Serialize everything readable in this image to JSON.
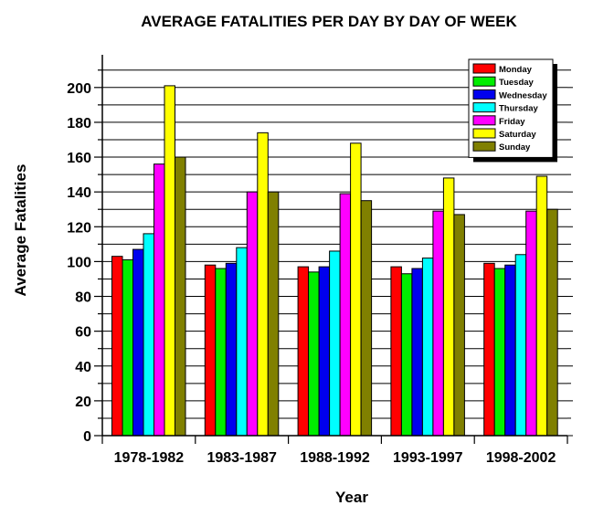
{
  "chart_data": {
    "type": "bar",
    "title": "AVERAGE FATALITIES PER DAY BY DAY OF WEEK",
    "xlabel": "Year",
    "ylabel": "Average Fatalities",
    "ylim": [
      0,
      210
    ],
    "yticks": [
      0,
      20,
      40,
      60,
      80,
      100,
      120,
      140,
      160,
      180,
      200
    ],
    "grid": true,
    "legend_position": "top-right",
    "categories": [
      "1978-1982",
      "1983-1987",
      "1988-1992",
      "1993-1997",
      "1998-2002"
    ],
    "series": [
      {
        "name": "Monday",
        "color": "#ff0000",
        "values": [
          103,
          98,
          97,
          97,
          99
        ]
      },
      {
        "name": "Tuesday",
        "color": "#00ee00",
        "values": [
          101,
          96,
          94,
          93,
          96
        ]
      },
      {
        "name": "Wednesday",
        "color": "#0000ee",
        "values": [
          107,
          99,
          97,
          96,
          98
        ]
      },
      {
        "name": "Thursday",
        "color": "#00ffff",
        "values": [
          116,
          108,
          106,
          102,
          104
        ]
      },
      {
        "name": "Friday",
        "color": "#ff00ff",
        "values": [
          156,
          140,
          139,
          129,
          129
        ]
      },
      {
        "name": "Saturday",
        "color": "#ffff00",
        "values": [
          201,
          174,
          168,
          148,
          149
        ]
      },
      {
        "name": "Sunday",
        "color": "#808000",
        "values": [
          160,
          140,
          135,
          127,
          130
        ]
      }
    ]
  }
}
